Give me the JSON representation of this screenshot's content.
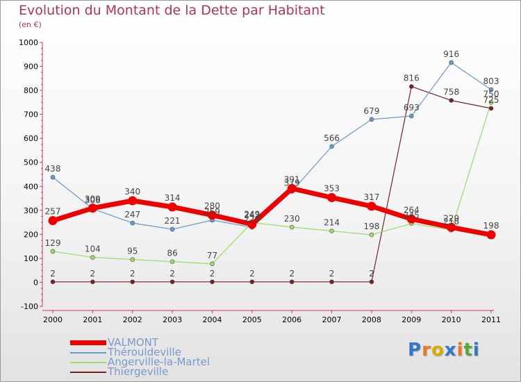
{
  "chart_data": {
    "type": "line",
    "title": "Evolution du Montant de la Dette par Habitant",
    "subtitle": "(en €)",
    "x": [
      "2000",
      "2001",
      "2002",
      "2003",
      "2004",
      "2005",
      "2006",
      "2007",
      "2008",
      "2009",
      "2010",
      "2011"
    ],
    "ylim": [
      -100,
      1000
    ],
    "yticks": [
      -100,
      0,
      100,
      200,
      300,
      400,
      500,
      600,
      700,
      800,
      900,
      1000
    ],
    "grid": false,
    "legend_placement": "bottom-left",
    "series": [
      {
        "name": "VALMONT",
        "color": "#ee0000",
        "values": [
          257,
          309,
          340,
          314,
          280,
          242,
          391,
          353,
          317,
          264,
          229,
          198
        ]
      },
      {
        "name": "Thérouldeville",
        "color": "#6699cc",
        "values": [
          438,
          306,
          247,
          221,
          259,
          229,
          379,
          566,
          679,
          693,
          916,
          803
        ]
      },
      {
        "name": "Angerville-la-Martel",
        "color": "#99dd66",
        "values": [
          129,
          104,
          95,
          86,
          77,
          249,
          230,
          214,
          198,
          245,
          218,
          750
        ]
      },
      {
        "name": "Thiergeville",
        "color": "#772222",
        "values": [
          2,
          2,
          2,
          2,
          2,
          2,
          2,
          2,
          2,
          816,
          758,
          725
        ]
      }
    ]
  },
  "logo": {
    "letters": [
      "P",
      "r",
      "o",
      "x",
      "i",
      "t",
      "i"
    ],
    "colors": [
      "#3377cc",
      "#ee7722",
      "#ddaa00",
      "#3377cc",
      "#ee7722",
      "#55aa33",
      "#3377cc"
    ]
  }
}
